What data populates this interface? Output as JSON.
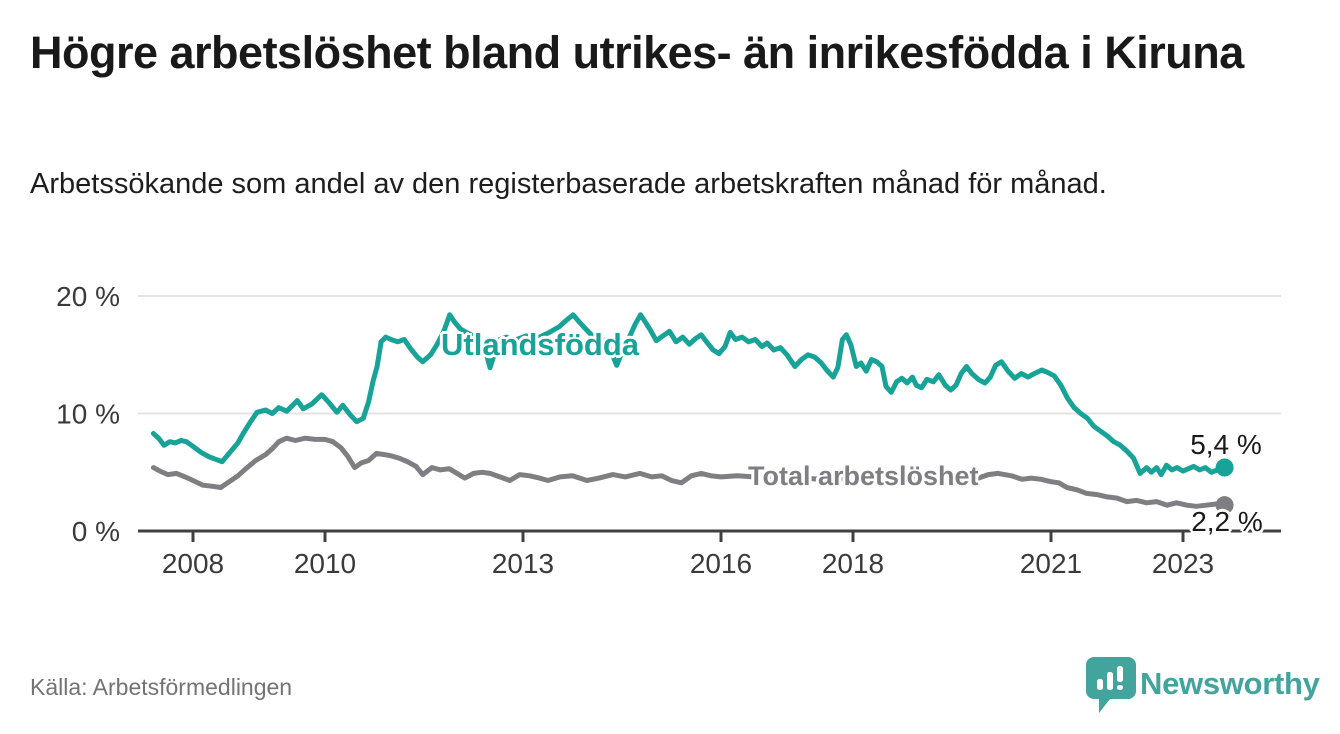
{
  "chart_data": {
    "type": "line",
    "title": "Högre arbetslöshet bland utrikes- än inrikesfödda i Kiruna",
    "subtitle": "Arbetssökande som andel av den registerbaserade arbetskraften månad för månad.",
    "source": "Källa: Arbetsförmedlingen",
    "unit": "%",
    "xlim": [
      2007.2,
      2024.4
    ],
    "ylim": [
      0,
      20
    ],
    "grid": "horizontal",
    "legend_position": "inline-labels",
    "colors": {
      "grid": "#e3e3e3",
      "axis": "#404040",
      "tick_text": "#3a3a3a"
    },
    "y_ticks": [
      {
        "value": 0,
        "label": "0 %"
      },
      {
        "value": 10,
        "label": "10 %"
      },
      {
        "value": 20,
        "label": "20 %"
      }
    ],
    "x_ticks": [
      {
        "year": 2008,
        "label": "2008"
      },
      {
        "year": 2010,
        "label": "2010"
      },
      {
        "year": 2013,
        "label": "2013"
      },
      {
        "year": 2016,
        "label": "2016"
      },
      {
        "year": 2018,
        "label": "2018"
      },
      {
        "year": 2021,
        "label": "2021"
      },
      {
        "year": 2023,
        "label": "2023"
      }
    ],
    "series": [
      {
        "id": "utlandsfodda",
        "name": "Utlandsfödda",
        "color": "#17a398",
        "end_label": "5,4 %",
        "end_value": 5.4,
        "points": [
          [
            2007.4,
            8.3
          ],
          [
            2007.48,
            7.9
          ],
          [
            2007.56,
            7.3
          ],
          [
            2007.65,
            7.6
          ],
          [
            2007.73,
            7.5
          ],
          [
            2007.82,
            7.7
          ],
          [
            2007.9,
            7.6
          ],
          [
            2008.0,
            7.2
          ],
          [
            2008.12,
            6.7
          ],
          [
            2008.25,
            6.3
          ],
          [
            2008.44,
            5.9
          ],
          [
            2008.56,
            6.7
          ],
          [
            2008.68,
            7.5
          ],
          [
            2008.76,
            8.3
          ],
          [
            2008.86,
            9.2
          ],
          [
            2008.97,
            10.1
          ],
          [
            2009.1,
            10.3
          ],
          [
            2009.2,
            10.0
          ],
          [
            2009.3,
            10.5
          ],
          [
            2009.42,
            10.2
          ],
          [
            2009.58,
            11.1
          ],
          [
            2009.67,
            10.4
          ],
          [
            2009.8,
            10.8
          ],
          [
            2009.95,
            11.6
          ],
          [
            2010.05,
            11.0
          ],
          [
            2010.18,
            10.1
          ],
          [
            2010.27,
            10.7
          ],
          [
            2010.38,
            9.9
          ],
          [
            2010.48,
            9.3
          ],
          [
            2010.58,
            9.6
          ],
          [
            2010.66,
            11.0
          ],
          [
            2010.73,
            12.8
          ],
          [
            2010.79,
            14.0
          ],
          [
            2010.85,
            16.1
          ],
          [
            2010.92,
            16.5
          ],
          [
            2011.0,
            16.3
          ],
          [
            2011.1,
            16.1
          ],
          [
            2011.2,
            16.3
          ],
          [
            2011.3,
            15.5
          ],
          [
            2011.4,
            14.8
          ],
          [
            2011.48,
            14.4
          ],
          [
            2011.6,
            15.0
          ],
          [
            2011.7,
            15.9
          ],
          [
            2011.8,
            17.0
          ],
          [
            2011.89,
            18.4
          ],
          [
            2011.96,
            17.8
          ],
          [
            2012.05,
            17.2
          ],
          [
            2012.14,
            16.9
          ],
          [
            2012.25,
            16.6
          ],
          [
            2012.35,
            16.3
          ],
          [
            2012.44,
            15.2
          ],
          [
            2012.5,
            13.9
          ],
          [
            2012.58,
            15.3
          ],
          [
            2012.65,
            16.3
          ],
          [
            2012.75,
            16.5
          ],
          [
            2012.85,
            16.2
          ],
          [
            2012.95,
            16.4
          ],
          [
            2013.05,
            16.6
          ],
          [
            2013.15,
            16.3
          ],
          [
            2013.25,
            16.5
          ],
          [
            2013.4,
            16.9
          ],
          [
            2013.55,
            17.4
          ],
          [
            2013.67,
            18.0
          ],
          [
            2013.76,
            18.4
          ],
          [
            2013.85,
            17.8
          ],
          [
            2013.95,
            17.2
          ],
          [
            2014.05,
            16.6
          ],
          [
            2014.15,
            16.4
          ],
          [
            2014.25,
            16.2
          ],
          [
            2014.33,
            15.3
          ],
          [
            2014.42,
            14.1
          ],
          [
            2014.52,
            15.5
          ],
          [
            2014.62,
            16.6
          ],
          [
            2014.7,
            17.6
          ],
          [
            2014.78,
            18.4
          ],
          [
            2014.85,
            17.8
          ],
          [
            2014.93,
            17.1
          ],
          [
            2015.02,
            16.2
          ],
          [
            2015.12,
            16.6
          ],
          [
            2015.22,
            17.0
          ],
          [
            2015.32,
            16.1
          ],
          [
            2015.42,
            16.5
          ],
          [
            2015.52,
            15.9
          ],
          [
            2015.62,
            16.4
          ],
          [
            2015.7,
            16.7
          ],
          [
            2015.78,
            16.1
          ],
          [
            2015.88,
            15.4
          ],
          [
            2015.97,
            15.1
          ],
          [
            2016.06,
            15.7
          ],
          [
            2016.14,
            16.9
          ],
          [
            2016.22,
            16.3
          ],
          [
            2016.32,
            16.5
          ],
          [
            2016.42,
            16.1
          ],
          [
            2016.52,
            16.3
          ],
          [
            2016.62,
            15.7
          ],
          [
            2016.7,
            16.0
          ],
          [
            2016.8,
            15.4
          ],
          [
            2016.9,
            15.6
          ],
          [
            2017.0,
            15.0
          ],
          [
            2017.12,
            14.0
          ],
          [
            2017.22,
            14.6
          ],
          [
            2017.32,
            15.0
          ],
          [
            2017.42,
            14.8
          ],
          [
            2017.52,
            14.3
          ],
          [
            2017.6,
            13.7
          ],
          [
            2017.7,
            13.1
          ],
          [
            2017.77,
            13.9
          ],
          [
            2017.84,
            16.3
          ],
          [
            2017.9,
            16.7
          ],
          [
            2017.97,
            15.8
          ],
          [
            2018.05,
            14.0
          ],
          [
            2018.12,
            14.3
          ],
          [
            2018.2,
            13.6
          ],
          [
            2018.28,
            14.6
          ],
          [
            2018.36,
            14.4
          ],
          [
            2018.44,
            14.0
          ],
          [
            2018.5,
            12.3
          ],
          [
            2018.58,
            11.8
          ],
          [
            2018.66,
            12.7
          ],
          [
            2018.74,
            13.0
          ],
          [
            2018.82,
            12.6
          ],
          [
            2018.9,
            13.1
          ],
          [
            2018.96,
            12.4
          ],
          [
            2019.04,
            12.2
          ],
          [
            2019.12,
            12.9
          ],
          [
            2019.22,
            12.7
          ],
          [
            2019.3,
            13.3
          ],
          [
            2019.4,
            12.4
          ],
          [
            2019.48,
            12.0
          ],
          [
            2019.56,
            12.4
          ],
          [
            2019.64,
            13.4
          ],
          [
            2019.72,
            14.0
          ],
          [
            2019.8,
            13.4
          ],
          [
            2019.9,
            12.9
          ],
          [
            2020.0,
            12.6
          ],
          [
            2020.08,
            13.1
          ],
          [
            2020.16,
            14.1
          ],
          [
            2020.25,
            14.4
          ],
          [
            2020.35,
            13.6
          ],
          [
            2020.45,
            13.0
          ],
          [
            2020.55,
            13.4
          ],
          [
            2020.65,
            13.1
          ],
          [
            2020.75,
            13.4
          ],
          [
            2020.86,
            13.7
          ],
          [
            2020.95,
            13.5
          ],
          [
            2021.05,
            13.2
          ],
          [
            2021.15,
            12.4
          ],
          [
            2021.25,
            11.3
          ],
          [
            2021.35,
            10.5
          ],
          [
            2021.45,
            10.0
          ],
          [
            2021.55,
            9.6
          ],
          [
            2021.65,
            8.9
          ],
          [
            2021.75,
            8.5
          ],
          [
            2021.85,
            8.1
          ],
          [
            2021.95,
            7.6
          ],
          [
            2022.05,
            7.3
          ],
          [
            2022.15,
            6.8
          ],
          [
            2022.25,
            6.2
          ],
          [
            2022.35,
            4.9
          ],
          [
            2022.45,
            5.4
          ],
          [
            2022.52,
            5.0
          ],
          [
            2022.6,
            5.4
          ],
          [
            2022.67,
            4.8
          ],
          [
            2022.75,
            5.6
          ],
          [
            2022.83,
            5.2
          ],
          [
            2022.91,
            5.4
          ],
          [
            2023.0,
            5.1
          ],
          [
            2023.08,
            5.3
          ],
          [
            2023.16,
            5.5
          ],
          [
            2023.25,
            5.2
          ],
          [
            2023.34,
            5.4
          ],
          [
            2023.43,
            5.0
          ],
          [
            2023.52,
            5.2
          ],
          [
            2023.63,
            5.4
          ]
        ]
      },
      {
        "id": "total",
        "name": "Total arbetslöshet",
        "color": "#7e7e83",
        "end_label": "2,2 %",
        "end_value": 2.2,
        "points": [
          [
            2007.4,
            5.4
          ],
          [
            2007.5,
            5.1
          ],
          [
            2007.62,
            4.8
          ],
          [
            2007.75,
            4.9
          ],
          [
            2007.88,
            4.6
          ],
          [
            2008.0,
            4.3
          ],
          [
            2008.15,
            3.9
          ],
          [
            2008.3,
            3.8
          ],
          [
            2008.42,
            3.7
          ],
          [
            2008.55,
            4.2
          ],
          [
            2008.68,
            4.7
          ],
          [
            2008.8,
            5.3
          ],
          [
            2008.95,
            6.0
          ],
          [
            2009.1,
            6.5
          ],
          [
            2009.2,
            7.0
          ],
          [
            2009.3,
            7.6
          ],
          [
            2009.42,
            7.9
          ],
          [
            2009.55,
            7.7
          ],
          [
            2009.7,
            7.9
          ],
          [
            2009.85,
            7.8
          ],
          [
            2010.0,
            7.8
          ],
          [
            2010.12,
            7.6
          ],
          [
            2010.24,
            7.1
          ],
          [
            2010.34,
            6.4
          ],
          [
            2010.45,
            5.4
          ],
          [
            2010.55,
            5.8
          ],
          [
            2010.66,
            6.0
          ],
          [
            2010.78,
            6.6
          ],
          [
            2010.9,
            6.5
          ],
          [
            2011.0,
            6.4
          ],
          [
            2011.12,
            6.2
          ],
          [
            2011.25,
            5.9
          ],
          [
            2011.38,
            5.5
          ],
          [
            2011.48,
            4.8
          ],
          [
            2011.62,
            5.4
          ],
          [
            2011.75,
            5.2
          ],
          [
            2011.88,
            5.3
          ],
          [
            2012.0,
            4.9
          ],
          [
            2012.12,
            4.5
          ],
          [
            2012.25,
            4.9
          ],
          [
            2012.38,
            5.0
          ],
          [
            2012.5,
            4.9
          ],
          [
            2012.65,
            4.6
          ],
          [
            2012.8,
            4.3
          ],
          [
            2012.95,
            4.8
          ],
          [
            2013.1,
            4.7
          ],
          [
            2013.25,
            4.5
          ],
          [
            2013.38,
            4.3
          ],
          [
            2013.56,
            4.6
          ],
          [
            2013.75,
            4.7
          ],
          [
            2013.97,
            4.3
          ],
          [
            2014.15,
            4.5
          ],
          [
            2014.36,
            4.8
          ],
          [
            2014.55,
            4.6
          ],
          [
            2014.77,
            4.9
          ],
          [
            2014.95,
            4.6
          ],
          [
            2015.1,
            4.7
          ],
          [
            2015.25,
            4.3
          ],
          [
            2015.4,
            4.1
          ],
          [
            2015.55,
            4.7
          ],
          [
            2015.7,
            4.9
          ],
          [
            2015.85,
            4.7
          ],
          [
            2016.0,
            4.6
          ],
          [
            2016.25,
            4.7
          ],
          [
            2016.5,
            4.6
          ],
          [
            2016.75,
            4.5
          ],
          [
            2017.0,
            4.4
          ],
          [
            2017.25,
            4.5
          ],
          [
            2017.5,
            4.4
          ],
          [
            2017.75,
            4.5
          ],
          [
            2018.0,
            4.4
          ],
          [
            2018.25,
            4.5
          ],
          [
            2018.5,
            4.6
          ],
          [
            2018.75,
            4.6
          ],
          [
            2019.0,
            4.7
          ],
          [
            2019.25,
            4.8
          ],
          [
            2019.45,
            4.9
          ],
          [
            2019.6,
            4.8
          ],
          [
            2019.75,
            4.7
          ],
          [
            2019.9,
            4.5
          ],
          [
            2020.05,
            4.8
          ],
          [
            2020.2,
            4.9
          ],
          [
            2020.4,
            4.7
          ],
          [
            2020.56,
            4.4
          ],
          [
            2020.7,
            4.5
          ],
          [
            2020.85,
            4.4
          ],
          [
            2021.0,
            4.2
          ],
          [
            2021.12,
            4.1
          ],
          [
            2021.24,
            3.7
          ],
          [
            2021.4,
            3.5
          ],
          [
            2021.54,
            3.2
          ],
          [
            2021.7,
            3.1
          ],
          [
            2021.85,
            2.9
          ],
          [
            2022.0,
            2.8
          ],
          [
            2022.15,
            2.5
          ],
          [
            2022.3,
            2.6
          ],
          [
            2022.45,
            2.4
          ],
          [
            2022.6,
            2.5
          ],
          [
            2022.76,
            2.2
          ],
          [
            2022.9,
            2.4
          ],
          [
            2023.06,
            2.2
          ],
          [
            2023.2,
            2.1
          ],
          [
            2023.35,
            2.2
          ],
          [
            2023.5,
            2.3
          ],
          [
            2023.63,
            2.2
          ]
        ]
      }
    ]
  },
  "footer": {
    "brand": "Newsworthy"
  }
}
